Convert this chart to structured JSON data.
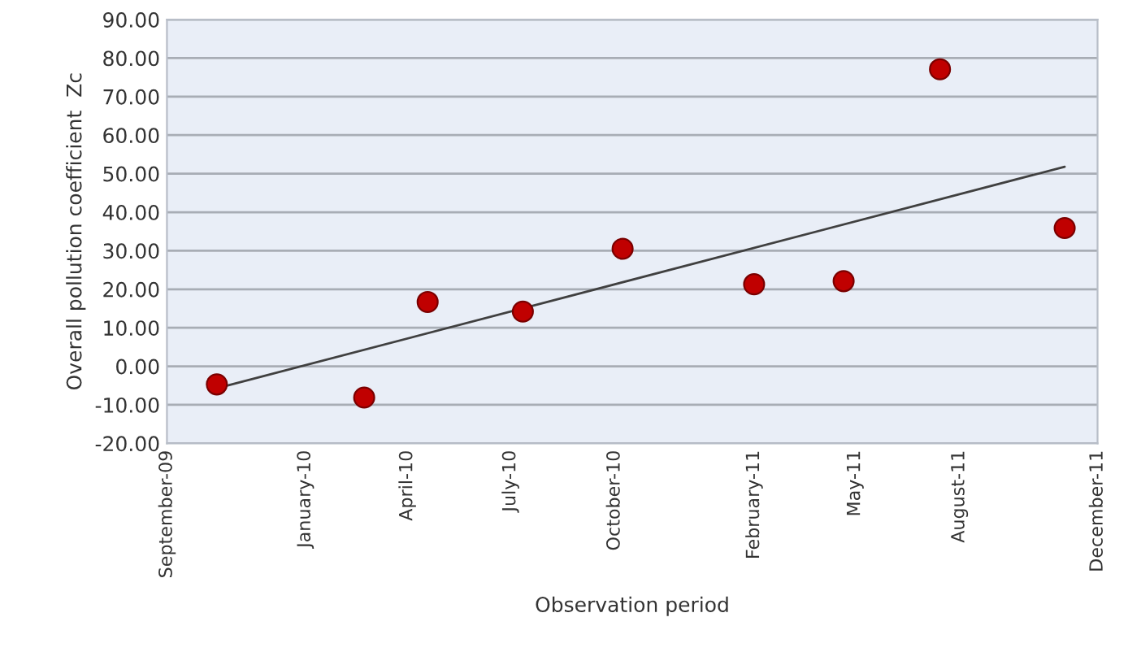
{
  "chart_data": {
    "type": "scatter",
    "xlabel": "Observation period",
    "ylabel": "Overall pollution coefficient  Zc",
    "x": [
      "2009-10-15",
      "2010-02-22",
      "2010-04-19",
      "2010-07-12",
      "2010-10-08",
      "2011-02-01",
      "2011-04-21",
      "2011-07-15",
      "2011-11-02"
    ],
    "series": [
      {
        "color": "#c00000",
        "marker": "circle",
        "values": [
          -4.7,
          -8.1,
          16.7,
          14.2,
          30.5,
          21.3,
          22.1,
          77.1,
          35.9
        ]
      },
      {
        "type": "line",
        "color": "#404040",
        "marker": "none",
        "x": [
          "2009-10-15",
          "2011-11-02"
        ],
        "values": [
          -5.7,
          51.8
        ]
      }
    ],
    "xlim": [
      "2009-09-01",
      "2011-12-01"
    ],
    "xticks": [
      {
        "value": "2009-09-01",
        "label": "September-09"
      },
      {
        "value": "2010-01-01",
        "label": "January-10"
      },
      {
        "value": "2010-04-01",
        "label": "April-10"
      },
      {
        "value": "2010-07-01",
        "label": "July-10"
      },
      {
        "value": "2010-10-01",
        "label": "October-10"
      },
      {
        "value": "2011-02-01",
        "label": "February-11"
      },
      {
        "value": "2011-05-01",
        "label": "May-11"
      },
      {
        "value": "2011-08-01",
        "label": "August-11"
      },
      {
        "value": "2011-12-01",
        "label": "December-11"
      }
    ],
    "ylim": [
      -20,
      90
    ],
    "yticks": [
      {
        "value": -20,
        "label": "-20.00"
      },
      {
        "value": -10,
        "label": "-10.00"
      },
      {
        "value": 0,
        "label": "0.00"
      },
      {
        "value": 10,
        "label": "10.00"
      },
      {
        "value": 20,
        "label": "20.00"
      },
      {
        "value": 30,
        "label": "30.00"
      },
      {
        "value": 40,
        "label": "40.00"
      },
      {
        "value": 50,
        "label": "50.00"
      },
      {
        "value": 60,
        "label": "60.00"
      },
      {
        "value": 70,
        "label": "70.00"
      },
      {
        "value": 80,
        "label": "80.00"
      },
      {
        "value": 90,
        "label": "90.00"
      }
    ],
    "grid": "y",
    "legend": false
  }
}
